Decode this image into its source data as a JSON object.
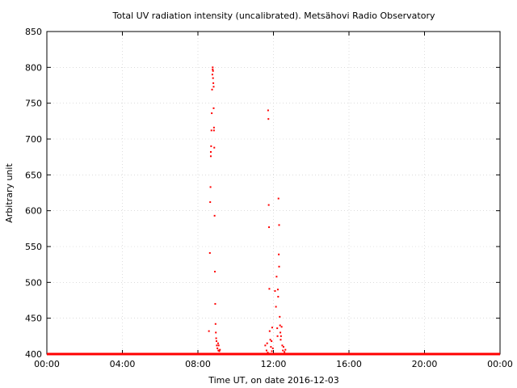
{
  "chart_data": {
    "type": "scatter",
    "title": "Total UV radiation intensity (uncalibrated). Metsähovi Radio Observatory",
    "xlabel": "Time UT, on date 2016-12-03",
    "ylabel": "Arbitrary unit",
    "xlim": [
      "00:00",
      "24:00"
    ],
    "ylim": [
      400,
      850
    ],
    "x_ticks": [
      "00:00",
      "04:00",
      "08:00",
      "12:00",
      "16:00",
      "20:00",
      "00:00"
    ],
    "y_ticks": [
      "400",
      "450",
      "500",
      "550",
      "600",
      "650",
      "700",
      "750",
      "800",
      "850"
    ],
    "grid": true,
    "legend": "none",
    "point_color": "#ff0000",
    "baseline": {
      "value": 400,
      "from": "00:00",
      "to": "24:00"
    },
    "series": [
      {
        "points": [
          [
            "08:35",
            432
          ],
          [
            "08:38",
            541
          ],
          [
            "08:39",
            612
          ],
          [
            "08:40",
            633
          ],
          [
            "08:41",
            676
          ],
          [
            "08:41",
            682
          ],
          [
            "08:42",
            690
          ],
          [
            "08:43",
            712
          ],
          [
            "08:44",
            736
          ],
          [
            "08:45",
            769
          ],
          [
            "08:46",
            790
          ],
          [
            "08:47",
            797
          ],
          [
            "08:47",
            800
          ],
          [
            "08:48",
            795
          ],
          [
            "08:48",
            785
          ],
          [
            "08:49",
            778
          ],
          [
            "08:50",
            773
          ],
          [
            "08:50",
            743
          ],
          [
            "08:51",
            716
          ],
          [
            "08:51",
            712
          ],
          [
            "08:52",
            688
          ],
          [
            "08:53",
            593
          ],
          [
            "08:54",
            515
          ],
          [
            "08:55",
            470
          ],
          [
            "08:56",
            442
          ],
          [
            "08:57",
            430
          ],
          [
            "08:58",
            422
          ],
          [
            "08:59",
            418
          ],
          [
            "09:00",
            412
          ],
          [
            "09:02",
            408
          ],
          [
            "09:04",
            415
          ],
          [
            "09:05",
            405
          ],
          [
            "09:06",
            412
          ],
          [
            "09:08",
            404
          ],
          [
            "09:10",
            406
          ],
          [
            "11:34",
            412
          ],
          [
            "11:38",
            405
          ],
          [
            "11:40",
            415
          ],
          [
            "11:42",
            402
          ],
          [
            "11:43",
            740
          ],
          [
            "11:44",
            728
          ],
          [
            "11:45",
            608
          ],
          [
            "11:46",
            577
          ],
          [
            "11:47",
            491
          ],
          [
            "11:48",
            432
          ],
          [
            "11:50",
            420
          ],
          [
            "11:52",
            410
          ],
          [
            "11:54",
            418
          ],
          [
            "11:55",
            404
          ],
          [
            "11:56",
            437
          ],
          [
            "11:58",
            408
          ],
          [
            "12:05",
            488
          ],
          [
            "12:08",
            466
          ],
          [
            "12:10",
            508
          ],
          [
            "12:12",
            436
          ],
          [
            "12:13",
            425
          ],
          [
            "12:14",
            490
          ],
          [
            "12:15",
            480
          ],
          [
            "12:16",
            617
          ],
          [
            "12:17",
            539
          ],
          [
            "12:18",
            522
          ],
          [
            "12:18",
            580
          ],
          [
            "12:20",
            452
          ],
          [
            "12:21",
            440
          ],
          [
            "12:22",
            430
          ],
          [
            "12:23",
            420
          ],
          [
            "12:24",
            425
          ],
          [
            "12:26",
            438
          ],
          [
            "12:28",
            412
          ],
          [
            "12:30",
            405
          ],
          [
            "12:32",
            410
          ],
          [
            "12:35",
            403
          ],
          [
            "12:38",
            406
          ]
        ]
      }
    ]
  }
}
